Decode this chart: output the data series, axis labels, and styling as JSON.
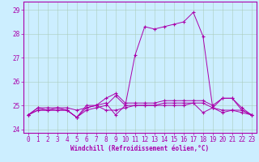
{
  "title": "",
  "xlabel": "Windchill (Refroidissement éolien,°C)",
  "ylabel": "",
  "background_color": "#cceeff",
  "grid_color": "#aaccbb",
  "line_color": "#aa00aa",
  "spine_color": "#aa00aa",
  "xlim": [
    -0.5,
    23.5
  ],
  "ylim": [
    23.85,
    29.35
  ],
  "yticks": [
    24,
    25,
    26,
    27,
    28,
    29
  ],
  "xticks": [
    0,
    1,
    2,
    3,
    4,
    5,
    6,
    7,
    8,
    9,
    10,
    11,
    12,
    13,
    14,
    15,
    16,
    17,
    18,
    19,
    20,
    21,
    22,
    23
  ],
  "series": [
    [
      24.6,
      24.8,
      24.8,
      24.8,
      24.8,
      24.5,
      24.8,
      24.9,
      25.0,
      25.4,
      25.0,
      27.1,
      28.3,
      28.2,
      28.3,
      28.4,
      28.5,
      28.9,
      27.9,
      24.9,
      25.3,
      25.3,
      24.8,
      24.6
    ],
    [
      24.6,
      24.8,
      24.8,
      24.9,
      24.9,
      24.8,
      24.9,
      25.0,
      25.1,
      24.6,
      25.0,
      25.0,
      25.0,
      25.0,
      25.1,
      25.1,
      25.1,
      25.1,
      25.1,
      24.9,
      24.8,
      24.8,
      24.7,
      24.6
    ],
    [
      24.6,
      24.9,
      24.8,
      24.8,
      24.8,
      24.5,
      24.9,
      25.0,
      25.3,
      25.5,
      25.1,
      25.1,
      25.1,
      25.1,
      25.2,
      25.2,
      25.2,
      25.2,
      25.2,
      25.0,
      25.3,
      25.3,
      24.9,
      24.6
    ],
    [
      24.6,
      24.9,
      24.9,
      24.9,
      24.8,
      24.5,
      25.0,
      25.0,
      24.8,
      24.8,
      24.9,
      25.0,
      25.0,
      25.0,
      25.0,
      25.0,
      25.0,
      25.1,
      24.7,
      24.9,
      24.7,
      24.8,
      24.8,
      24.6
    ]
  ],
  "tick_labelsize": 5.5,
  "xlabel_fontsize": 5.5,
  "xlabel_fontweight": "bold"
}
